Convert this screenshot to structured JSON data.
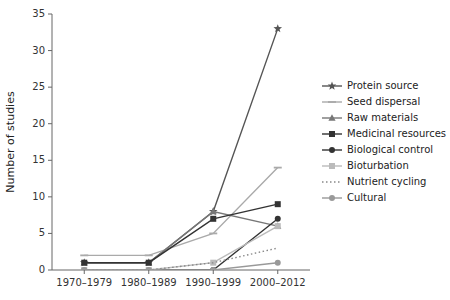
{
  "chart_data": {
    "type": "line",
    "categories": [
      "1970–1979",
      "1980–1989",
      "1990–1999",
      "2000–2012"
    ],
    "series": [
      {
        "name": "Protein source",
        "color": "#555555",
        "marker": "star",
        "line_style": "solid",
        "values": [
          1,
          1,
          8,
          33
        ]
      },
      {
        "name": "Seed dispersal",
        "color": "#aaaaaa",
        "marker": "dash",
        "line_style": "solid",
        "values": [
          2,
          2,
          5,
          14
        ]
      },
      {
        "name": "Raw materials",
        "color": "#777777",
        "marker": "triangle",
        "line_style": "solid",
        "values": [
          1,
          1,
          8,
          6
        ]
      },
      {
        "name": "Medicinal resources",
        "color": "#333333",
        "marker": "square",
        "line_style": "solid",
        "values": [
          1,
          1,
          7,
          9
        ]
      },
      {
        "name": "Biological control",
        "color": "#333333",
        "marker": "circle",
        "line_style": "solid",
        "values": [
          0,
          0,
          0,
          7
        ]
      },
      {
        "name": "Bioturbation",
        "color": "#bbbbbb",
        "marker": "square",
        "line_style": "solid",
        "values": [
          0,
          0,
          1,
          6
        ]
      },
      {
        "name": "Nutrient cycling",
        "color": "#888888",
        "marker": "none",
        "line_style": "dotted",
        "values": [
          0,
          0,
          1,
          3
        ]
      },
      {
        "name": "Cultural",
        "color": "#999999",
        "marker": "circle",
        "line_style": "solid",
        "values": [
          0,
          0,
          0,
          1
        ]
      }
    ],
    "ylabel": "Number of studies",
    "ylim": [
      0,
      35
    ],
    "yticks": [
      0,
      5,
      10,
      15,
      20,
      25,
      30,
      35
    ],
    "grid": false,
    "legend": "right"
  }
}
